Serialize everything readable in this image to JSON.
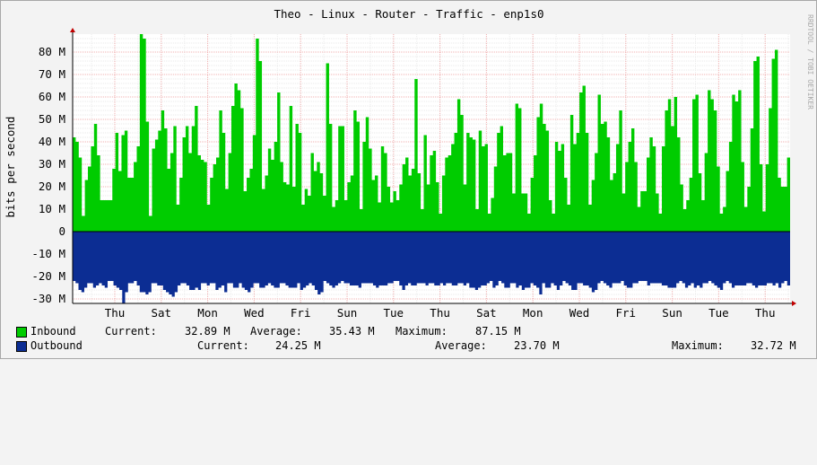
{
  "chart_data": {
    "type": "area",
    "title": "Theo - Linux - Router - Traffic - enp1s0",
    "ylabel": "bits per second",
    "watermark": "RRDTOOL / TOBI OETIKER",
    "ylim": [
      -32,
      88
    ],
    "yticks": [
      {
        "value": 80,
        "label": "80 M"
      },
      {
        "value": 70,
        "label": "70 M"
      },
      {
        "value": 60,
        "label": "60 M"
      },
      {
        "value": 50,
        "label": "50 M"
      },
      {
        "value": 40,
        "label": "40 M"
      },
      {
        "value": 30,
        "label": "30 M"
      },
      {
        "value": 20,
        "label": "20 M"
      },
      {
        "value": 10,
        "label": "10 M"
      },
      {
        "value": 0,
        "label": "0"
      },
      {
        "value": -10,
        "label": "-10 M"
      },
      {
        "value": -20,
        "label": "-20 M"
      },
      {
        "value": -30,
        "label": "-30 M"
      }
    ],
    "xlabels": [
      "Thu",
      "Sat",
      "Mon",
      "Wed",
      "Fri",
      "Sun",
      "Tue",
      "Thu",
      "Sat",
      "Mon",
      "Wed",
      "Fri",
      "Sun",
      "Tue",
      "Thu"
    ],
    "grid": true,
    "series": [
      {
        "name": "Inbound",
        "color": "#00cc00",
        "values": [
          42,
          40,
          33,
          7,
          23,
          29,
          38,
          48,
          34,
          14,
          14,
          14,
          14,
          28,
          44,
          27,
          43,
          45,
          24,
          24,
          31,
          38,
          88,
          86,
          49,
          7,
          37,
          41,
          45,
          54,
          46,
          28,
          35,
          47,
          12,
          24,
          42,
          47,
          35,
          47,
          56,
          34,
          32,
          31,
          12,
          24,
          30,
          33,
          54,
          44,
          19,
          35,
          56,
          66,
          63,
          55,
          18,
          24,
          28,
          43,
          86,
          76,
          19,
          25,
          37,
          32,
          40,
          62,
          31,
          22,
          21,
          56,
          20,
          48,
          44,
          12,
          19,
          16,
          35,
          27,
          31,
          26,
          16,
          75,
          48,
          11,
          14,
          47,
          47,
          14,
          22,
          25,
          54,
          49,
          10,
          40,
          51,
          37,
          23,
          25,
          13,
          38,
          35,
          20,
          13,
          18,
          14,
          21,
          30,
          33,
          25,
          28,
          68,
          26,
          10,
          43,
          21,
          34,
          36,
          22,
          8,
          25,
          33,
          34,
          39,
          44,
          59,
          52,
          21,
          44,
          42,
          41,
          10,
          45,
          38,
          39,
          8,
          15,
          29,
          44,
          47,
          34,
          35,
          35,
          17,
          57,
          55,
          17,
          17,
          8,
          24,
          34,
          51,
          57,
          48,
          45,
          14,
          8,
          40,
          36,
          39,
          24,
          12,
          52,
          39,
          44,
          62,
          65,
          44,
          12,
          23,
          35,
          61,
          48,
          49,
          42,
          23,
          26,
          39,
          54,
          17,
          31,
          40,
          46,
          31,
          11,
          18,
          18,
          33,
          42,
          38,
          17,
          8,
          38,
          54,
          59,
          47,
          60,
          42,
          21,
          10,
          14,
          24,
          59,
          61,
          26,
          14,
          35,
          63,
          59,
          54,
          29,
          8,
          11,
          27,
          40,
          61,
          58,
          63,
          31,
          11,
          20,
          46,
          76,
          78,
          30,
          9,
          30,
          55,
          77,
          81,
          24,
          20,
          20,
          33
        ]
      },
      {
        "name": "Outbound",
        "color": "#0c2d93",
        "values": [
          22,
          23,
          26,
          27,
          25,
          23,
          23,
          25,
          24,
          23,
          24,
          25,
          22,
          22,
          24,
          25,
          26,
          32,
          27,
          23,
          23,
          22,
          24,
          27,
          27,
          28,
          27,
          23,
          23,
          24,
          24,
          26,
          27,
          28,
          29,
          27,
          24,
          23,
          23,
          24,
          26,
          26,
          25,
          26,
          23,
          23,
          24,
          23,
          23,
          26,
          25,
          24,
          27,
          23,
          23,
          25,
          25,
          23,
          25,
          26,
          27,
          25,
          23,
          23,
          25,
          25,
          24,
          23,
          24,
          25,
          25,
          23,
          23,
          24,
          25,
          25,
          25,
          23,
          26,
          25,
          24,
          23,
          24,
          26,
          28,
          27,
          22,
          23,
          24,
          25,
          24,
          23,
          22,
          23,
          23,
          24,
          24,
          24,
          25,
          23,
          23,
          23,
          23,
          24,
          25,
          24,
          24,
          24,
          23,
          23,
          22,
          22,
          24,
          26,
          24,
          23,
          24,
          24,
          23,
          23,
          23,
          24,
          23,
          23,
          24,
          24,
          23,
          24,
          23,
          23,
          24,
          24,
          23,
          23,
          24,
          23,
          25,
          25,
          26,
          25,
          24,
          24,
          23,
          22,
          25,
          24,
          22,
          23,
          25,
          25,
          23,
          23,
          25,
          24,
          26,
          25,
          25,
          23,
          24,
          25,
          28,
          23,
          25,
          25,
          23,
          24,
          26,
          24,
          22,
          23,
          24,
          26,
          26,
          23,
          23,
          24,
          24,
          25,
          27,
          26,
          23,
          22,
          23,
          24,
          25,
          23,
          23,
          23,
          22,
          24,
          25,
          25,
          23,
          23,
          22,
          22,
          22,
          24,
          23,
          23,
          23,
          23,
          24,
          24,
          25,
          25,
          25,
          23,
          22,
          23,
          25,
          24,
          23,
          25,
          24,
          25,
          23,
          23,
          22,
          23,
          24,
          25,
          26,
          23,
          22,
          23,
          25,
          24,
          24,
          24,
          24,
          23,
          23,
          24,
          25,
          24,
          24,
          24,
          23,
          23,
          24,
          23,
          25,
          23,
          22,
          24
        ]
      }
    ]
  },
  "legend": {
    "inbound": {
      "name": "Inbound",
      "current_label": "Current:",
      "current": "32.89 M",
      "average_label": "Average:",
      "average": "35.43 M",
      "maximum_label": "Maximum:",
      "maximum": "87.15 M",
      "color": "#00cc00"
    },
    "outbound": {
      "name": "Outbound",
      "current_label": "Current:",
      "current": "24.25 M",
      "average_label": "Average:",
      "average": "23.70 M",
      "maximum_label": "Maximum:",
      "maximum": "32.72 M",
      "color": "#0c2d93"
    }
  }
}
